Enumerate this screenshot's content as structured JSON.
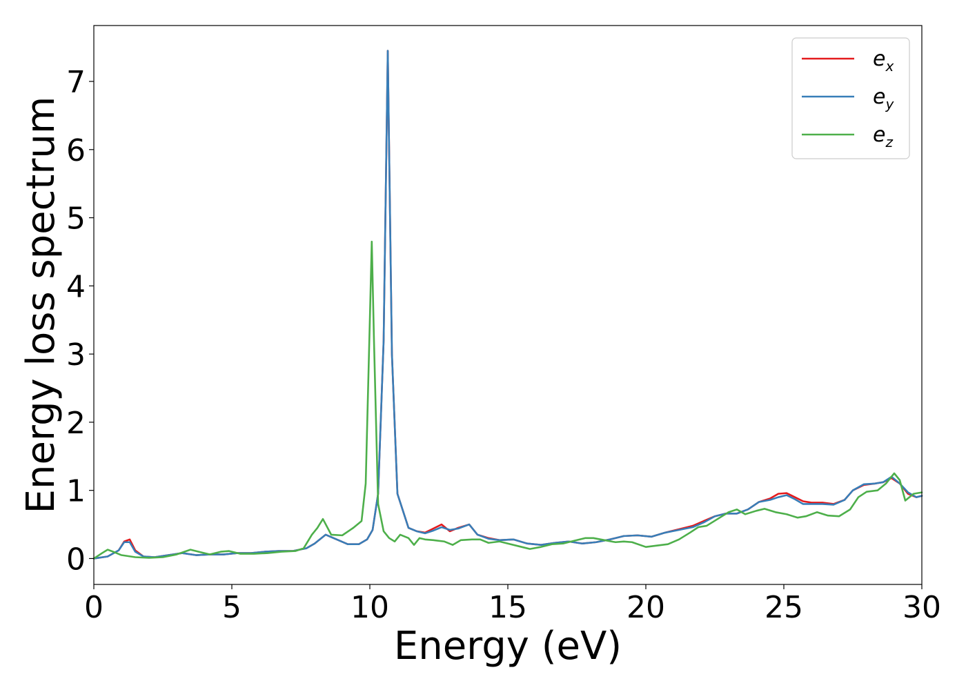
{
  "chart_data": {
    "type": "line",
    "title": "",
    "xlabel": "Energy (eV)",
    "ylabel": "Energy loss spectrum",
    "xlim": [
      0,
      30
    ],
    "ylim": [
      -0.38,
      7.82
    ],
    "xticks": [
      0,
      5,
      10,
      15,
      20,
      25,
      30
    ],
    "yticks": [
      0,
      1,
      2,
      3,
      4,
      5,
      6,
      7
    ],
    "grid": false,
    "legend_position": "top-right",
    "series": [
      {
        "name": "e_x",
        "label_base": "e",
        "label_sub": "x",
        "color": "#e41a1c",
        "points": [
          [
            0,
            0.0
          ],
          [
            0.5,
            0.03
          ],
          [
            0.9,
            0.12
          ],
          [
            1.1,
            0.25
          ],
          [
            1.3,
            0.28
          ],
          [
            1.5,
            0.12
          ],
          [
            1.8,
            0.03
          ],
          [
            2.2,
            0.02
          ],
          [
            2.7,
            0.05
          ],
          [
            3.2,
            0.08
          ],
          [
            3.7,
            0.05
          ],
          [
            4.2,
            0.06
          ],
          [
            4.7,
            0.06
          ],
          [
            5.2,
            0.08
          ],
          [
            5.7,
            0.08
          ],
          [
            6.2,
            0.1
          ],
          [
            6.7,
            0.11
          ],
          [
            7.2,
            0.11
          ],
          [
            7.7,
            0.15
          ],
          [
            8.0,
            0.22
          ],
          [
            8.4,
            0.35
          ],
          [
            8.8,
            0.28
          ],
          [
            9.2,
            0.21
          ],
          [
            9.6,
            0.21
          ],
          [
            9.9,
            0.28
          ],
          [
            10.1,
            0.42
          ],
          [
            10.3,
            0.95
          ],
          [
            10.5,
            3.2
          ],
          [
            10.65,
            7.45
          ],
          [
            10.8,
            3.0
          ],
          [
            11.0,
            0.95
          ],
          [
            11.2,
            0.7
          ],
          [
            11.4,
            0.45
          ],
          [
            11.7,
            0.4
          ],
          [
            12.0,
            0.38
          ],
          [
            12.3,
            0.44
          ],
          [
            12.6,
            0.5
          ],
          [
            12.9,
            0.4
          ],
          [
            13.2,
            0.45
          ],
          [
            13.6,
            0.5
          ],
          [
            13.9,
            0.35
          ],
          [
            14.3,
            0.3
          ],
          [
            14.7,
            0.27
          ],
          [
            15.2,
            0.28
          ],
          [
            15.7,
            0.22
          ],
          [
            16.2,
            0.2
          ],
          [
            16.7,
            0.23
          ],
          [
            17.2,
            0.25
          ],
          [
            17.7,
            0.22
          ],
          [
            18.2,
            0.24
          ],
          [
            18.7,
            0.28
          ],
          [
            19.2,
            0.33
          ],
          [
            19.7,
            0.34
          ],
          [
            20.2,
            0.32
          ],
          [
            20.7,
            0.38
          ],
          [
            21.2,
            0.43
          ],
          [
            21.7,
            0.48
          ],
          [
            22.1,
            0.55
          ],
          [
            22.5,
            0.62
          ],
          [
            22.9,
            0.66
          ],
          [
            23.3,
            0.66
          ],
          [
            23.7,
            0.72
          ],
          [
            24.1,
            0.83
          ],
          [
            24.5,
            0.88
          ],
          [
            24.8,
            0.95
          ],
          [
            25.1,
            0.96
          ],
          [
            25.4,
            0.9
          ],
          [
            25.7,
            0.84
          ],
          [
            26.0,
            0.82
          ],
          [
            26.4,
            0.82
          ],
          [
            26.8,
            0.8
          ],
          [
            27.2,
            0.86
          ],
          [
            27.5,
            1.0
          ],
          [
            27.9,
            1.08
          ],
          [
            28.3,
            1.1
          ],
          [
            28.6,
            1.12
          ],
          [
            28.9,
            1.18
          ],
          [
            29.2,
            1.1
          ],
          [
            29.5,
            0.95
          ],
          [
            29.8,
            0.9
          ],
          [
            30.0,
            0.92
          ]
        ]
      },
      {
        "name": "e_y",
        "label_base": "e",
        "label_sub": "y",
        "color": "#377eb8",
        "points": [
          [
            0,
            0.0
          ],
          [
            0.5,
            0.03
          ],
          [
            0.9,
            0.12
          ],
          [
            1.1,
            0.24
          ],
          [
            1.3,
            0.24
          ],
          [
            1.5,
            0.1
          ],
          [
            1.8,
            0.03
          ],
          [
            2.2,
            0.02
          ],
          [
            2.7,
            0.05
          ],
          [
            3.2,
            0.08
          ],
          [
            3.7,
            0.05
          ],
          [
            4.2,
            0.06
          ],
          [
            4.7,
            0.06
          ],
          [
            5.2,
            0.08
          ],
          [
            5.7,
            0.08
          ],
          [
            6.2,
            0.1
          ],
          [
            6.7,
            0.11
          ],
          [
            7.2,
            0.11
          ],
          [
            7.7,
            0.15
          ],
          [
            8.0,
            0.22
          ],
          [
            8.4,
            0.35
          ],
          [
            8.8,
            0.28
          ],
          [
            9.2,
            0.21
          ],
          [
            9.6,
            0.21
          ],
          [
            9.9,
            0.28
          ],
          [
            10.1,
            0.42
          ],
          [
            10.3,
            0.95
          ],
          [
            10.5,
            3.2
          ],
          [
            10.65,
            7.45
          ],
          [
            10.8,
            3.0
          ],
          [
            11.0,
            0.95
          ],
          [
            11.2,
            0.7
          ],
          [
            11.4,
            0.45
          ],
          [
            11.7,
            0.4
          ],
          [
            12.0,
            0.37
          ],
          [
            12.3,
            0.41
          ],
          [
            12.6,
            0.46
          ],
          [
            12.9,
            0.42
          ],
          [
            13.2,
            0.44
          ],
          [
            13.6,
            0.5
          ],
          [
            13.9,
            0.35
          ],
          [
            14.3,
            0.29
          ],
          [
            14.7,
            0.27
          ],
          [
            15.2,
            0.28
          ],
          [
            15.7,
            0.22
          ],
          [
            16.2,
            0.2
          ],
          [
            16.7,
            0.23
          ],
          [
            17.2,
            0.25
          ],
          [
            17.7,
            0.22
          ],
          [
            18.2,
            0.24
          ],
          [
            18.7,
            0.28
          ],
          [
            19.2,
            0.33
          ],
          [
            19.7,
            0.34
          ],
          [
            20.2,
            0.32
          ],
          [
            20.7,
            0.38
          ],
          [
            21.2,
            0.42
          ],
          [
            21.7,
            0.46
          ],
          [
            22.1,
            0.53
          ],
          [
            22.5,
            0.62
          ],
          [
            22.9,
            0.66
          ],
          [
            23.3,
            0.66
          ],
          [
            23.7,
            0.72
          ],
          [
            24.1,
            0.83
          ],
          [
            24.5,
            0.86
          ],
          [
            24.8,
            0.9
          ],
          [
            25.1,
            0.93
          ],
          [
            25.4,
            0.87
          ],
          [
            25.7,
            0.8
          ],
          [
            26.0,
            0.8
          ],
          [
            26.4,
            0.8
          ],
          [
            26.8,
            0.79
          ],
          [
            27.2,
            0.86
          ],
          [
            27.5,
            1.0
          ],
          [
            27.9,
            1.09
          ],
          [
            28.3,
            1.1
          ],
          [
            28.6,
            1.12
          ],
          [
            28.9,
            1.2
          ],
          [
            29.2,
            1.1
          ],
          [
            29.5,
            0.97
          ],
          [
            29.8,
            0.9
          ],
          [
            30.0,
            0.92
          ]
        ]
      },
      {
        "name": "e_z",
        "label_base": "e",
        "label_sub": "z",
        "color": "#4daf4a",
        "points": [
          [
            0,
            0.0
          ],
          [
            0.3,
            0.08
          ],
          [
            0.5,
            0.13
          ],
          [
            0.7,
            0.1
          ],
          [
            1.0,
            0.05
          ],
          [
            1.5,
            0.02
          ],
          [
            2.0,
            0.01
          ],
          [
            2.5,
            0.02
          ],
          [
            3.0,
            0.06
          ],
          [
            3.5,
            0.13
          ],
          [
            3.8,
            0.1
          ],
          [
            4.2,
            0.06
          ],
          [
            4.6,
            0.1
          ],
          [
            4.9,
            0.11
          ],
          [
            5.3,
            0.07
          ],
          [
            5.8,
            0.07
          ],
          [
            6.3,
            0.08
          ],
          [
            6.8,
            0.1
          ],
          [
            7.3,
            0.11
          ],
          [
            7.6,
            0.15
          ],
          [
            7.9,
            0.35
          ],
          [
            8.1,
            0.45
          ],
          [
            8.3,
            0.58
          ],
          [
            8.6,
            0.35
          ],
          [
            9.0,
            0.34
          ],
          [
            9.4,
            0.45
          ],
          [
            9.7,
            0.55
          ],
          [
            9.85,
            1.1
          ],
          [
            10.0,
            3.5
          ],
          [
            10.07,
            4.65
          ],
          [
            10.15,
            3.2
          ],
          [
            10.3,
            0.8
          ],
          [
            10.5,
            0.4
          ],
          [
            10.7,
            0.3
          ],
          [
            10.9,
            0.25
          ],
          [
            11.1,
            0.35
          ],
          [
            11.4,
            0.3
          ],
          [
            11.6,
            0.2
          ],
          [
            11.8,
            0.3
          ],
          [
            12.0,
            0.28
          ],
          [
            12.3,
            0.27
          ],
          [
            12.7,
            0.25
          ],
          [
            13.0,
            0.2
          ],
          [
            13.3,
            0.27
          ],
          [
            13.7,
            0.28
          ],
          [
            14.0,
            0.28
          ],
          [
            14.3,
            0.23
          ],
          [
            14.7,
            0.25
          ],
          [
            15.0,
            0.22
          ],
          [
            15.4,
            0.18
          ],
          [
            15.8,
            0.14
          ],
          [
            16.2,
            0.17
          ],
          [
            16.6,
            0.21
          ],
          [
            17.0,
            0.22
          ],
          [
            17.4,
            0.26
          ],
          [
            17.8,
            0.3
          ],
          [
            18.1,
            0.3
          ],
          [
            18.5,
            0.27
          ],
          [
            18.9,
            0.24
          ],
          [
            19.2,
            0.25
          ],
          [
            19.5,
            0.24
          ],
          [
            20.0,
            0.17
          ],
          [
            20.4,
            0.19
          ],
          [
            20.8,
            0.21
          ],
          [
            21.2,
            0.28
          ],
          [
            21.6,
            0.38
          ],
          [
            21.9,
            0.46
          ],
          [
            22.2,
            0.48
          ],
          [
            22.6,
            0.58
          ],
          [
            23.0,
            0.68
          ],
          [
            23.3,
            0.72
          ],
          [
            23.6,
            0.65
          ],
          [
            24.0,
            0.7
          ],
          [
            24.3,
            0.73
          ],
          [
            24.7,
            0.68
          ],
          [
            25.1,
            0.65
          ],
          [
            25.5,
            0.6
          ],
          [
            25.8,
            0.62
          ],
          [
            26.2,
            0.68
          ],
          [
            26.6,
            0.63
          ],
          [
            27.0,
            0.62
          ],
          [
            27.4,
            0.72
          ],
          [
            27.7,
            0.9
          ],
          [
            28.0,
            0.98
          ],
          [
            28.4,
            1.0
          ],
          [
            28.7,
            1.1
          ],
          [
            29.0,
            1.25
          ],
          [
            29.2,
            1.15
          ],
          [
            29.4,
            0.85
          ],
          [
            29.7,
            0.95
          ],
          [
            30.0,
            0.97
          ]
        ]
      }
    ]
  }
}
